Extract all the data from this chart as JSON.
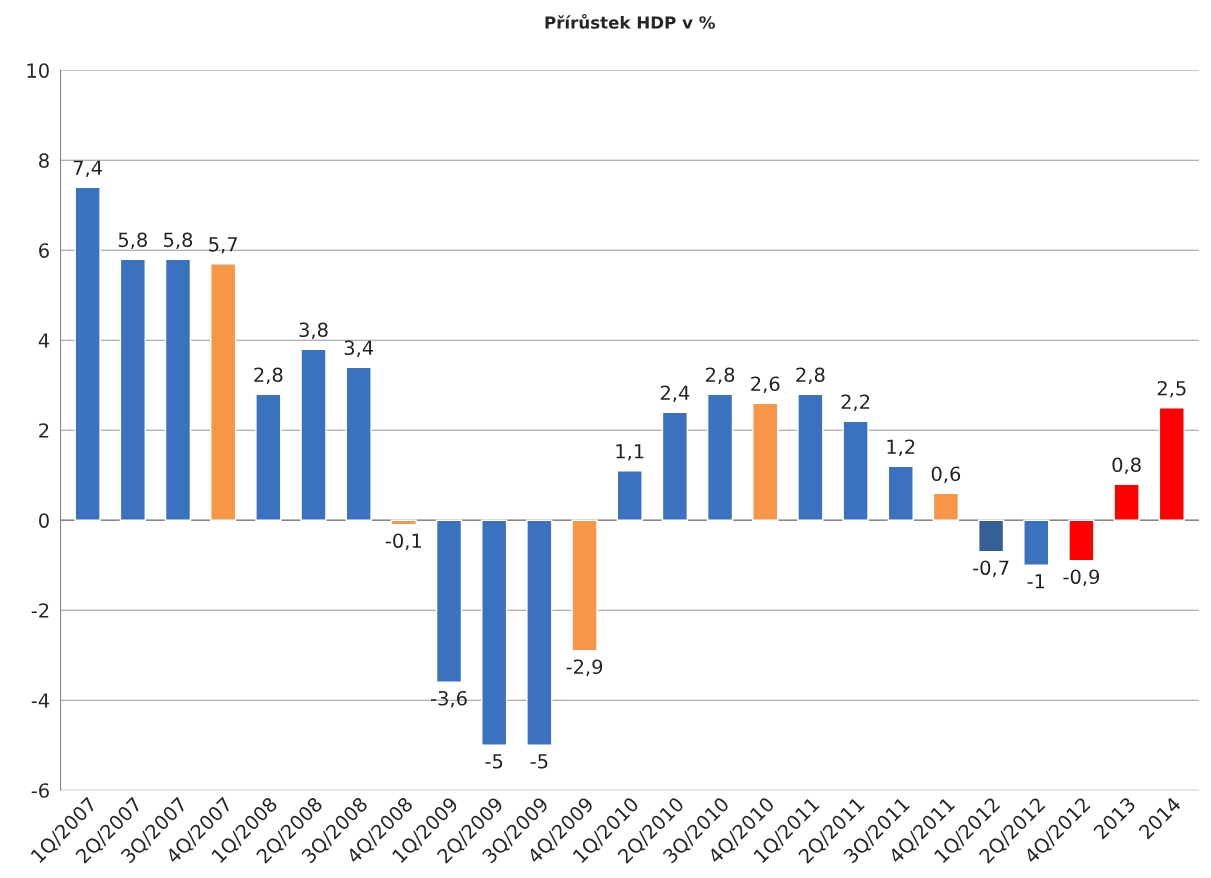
{
  "chart_data": {
    "type": "bar",
    "title": "Přírůstek HDP v %",
    "categories": [
      "1Q/2007",
      "2Q/2007",
      "3Q/2007",
      "4Q/2007",
      "1Q/2008",
      "2Q/2008",
      "3Q/2008",
      "4Q/2008",
      "1Q/2009",
      "2Q/2009",
      "3Q/2009",
      "4Q/2009",
      "1Q/2010",
      "2Q/2010",
      "3Q/2010",
      "4Q/2010",
      "1Q/2011",
      "2Q/2011",
      "3Q/2011",
      "4Q/2011",
      "1Q/2012",
      "2Q/2012",
      "4Q/2012",
      "2013",
      "2014"
    ],
    "values": [
      7.4,
      5.8,
      5.8,
      5.7,
      2.8,
      3.8,
      3.4,
      -0.1,
      -3.6,
      -5,
      -5,
      -2.9,
      1.1,
      2.4,
      2.8,
      2.6,
      2.8,
      2.2,
      1.2,
      0.6,
      -0.7,
      -1,
      -0.9,
      0.8,
      2.5
    ],
    "value_labels": [
      "7,4",
      "5,8",
      "5,8",
      "5,7",
      "2,8",
      "3,8",
      "3,4",
      "-0,1",
      "-3,6",
      "-5",
      "-5",
      "-2,9",
      "1,1",
      "2,4",
      "2,8",
      "2,6",
      "2,8",
      "2,2",
      "1,2",
      "0,6",
      "-0,7",
      "-1",
      "-0,9",
      "0,8",
      "2,5"
    ],
    "colors": [
      "#3a72c0",
      "#3a72c0",
      "#3a72c0",
      "#f79646",
      "#3a72c0",
      "#3a72c0",
      "#3a72c0",
      "#f79646",
      "#3a72c0",
      "#3a72c0",
      "#3a72c0",
      "#f79646",
      "#3a72c0",
      "#3a72c0",
      "#3a72c0",
      "#f79646",
      "#3a72c0",
      "#3a72c0",
      "#3a72c0",
      "#f79646",
      "#345f97",
      "#3a72c0",
      "#ff0000",
      "#ff0000",
      "#ff0000"
    ],
    "ylim": [
      -6,
      10
    ],
    "yticks": [
      -6,
      -4,
      -2,
      0,
      2,
      4,
      6,
      8,
      10
    ],
    "grid": "y"
  }
}
